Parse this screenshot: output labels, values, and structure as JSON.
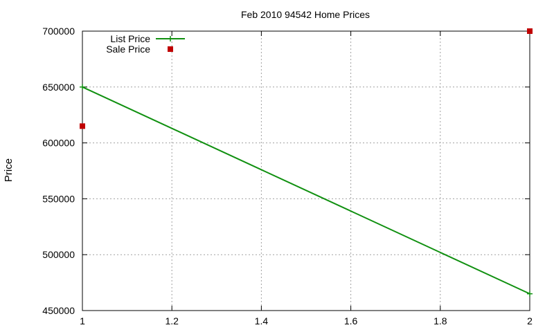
{
  "chart_data": {
    "type": "line",
    "title": "Feb 2010 94542 Home Prices",
    "xlabel": "",
    "ylabel": "Price",
    "xlim": [
      1,
      2
    ],
    "ylim": [
      450000,
      700000
    ],
    "x_ticks": [
      1,
      1.2,
      1.4,
      1.6,
      1.8,
      2
    ],
    "x_tick_labels": [
      "1",
      "1.2",
      "1.4",
      "1.6",
      "1.8",
      "2"
    ],
    "y_ticks": [
      450000,
      500000,
      550000,
      600000,
      650000,
      700000
    ],
    "y_tick_labels": [
      "450000",
      "500000",
      "550000",
      "600000",
      "650000",
      "700000"
    ],
    "grid": true,
    "legend_position": "top-left",
    "series": [
      {
        "name": "List Price",
        "style": "linespoints",
        "color": "#109010",
        "x": [
          1,
          2
        ],
        "y": [
          650000,
          465000
        ]
      },
      {
        "name": "Sale Price",
        "style": "points",
        "color": "#c00000",
        "x": [
          1,
          2
        ],
        "y": [
          615000,
          700000
        ]
      }
    ]
  }
}
